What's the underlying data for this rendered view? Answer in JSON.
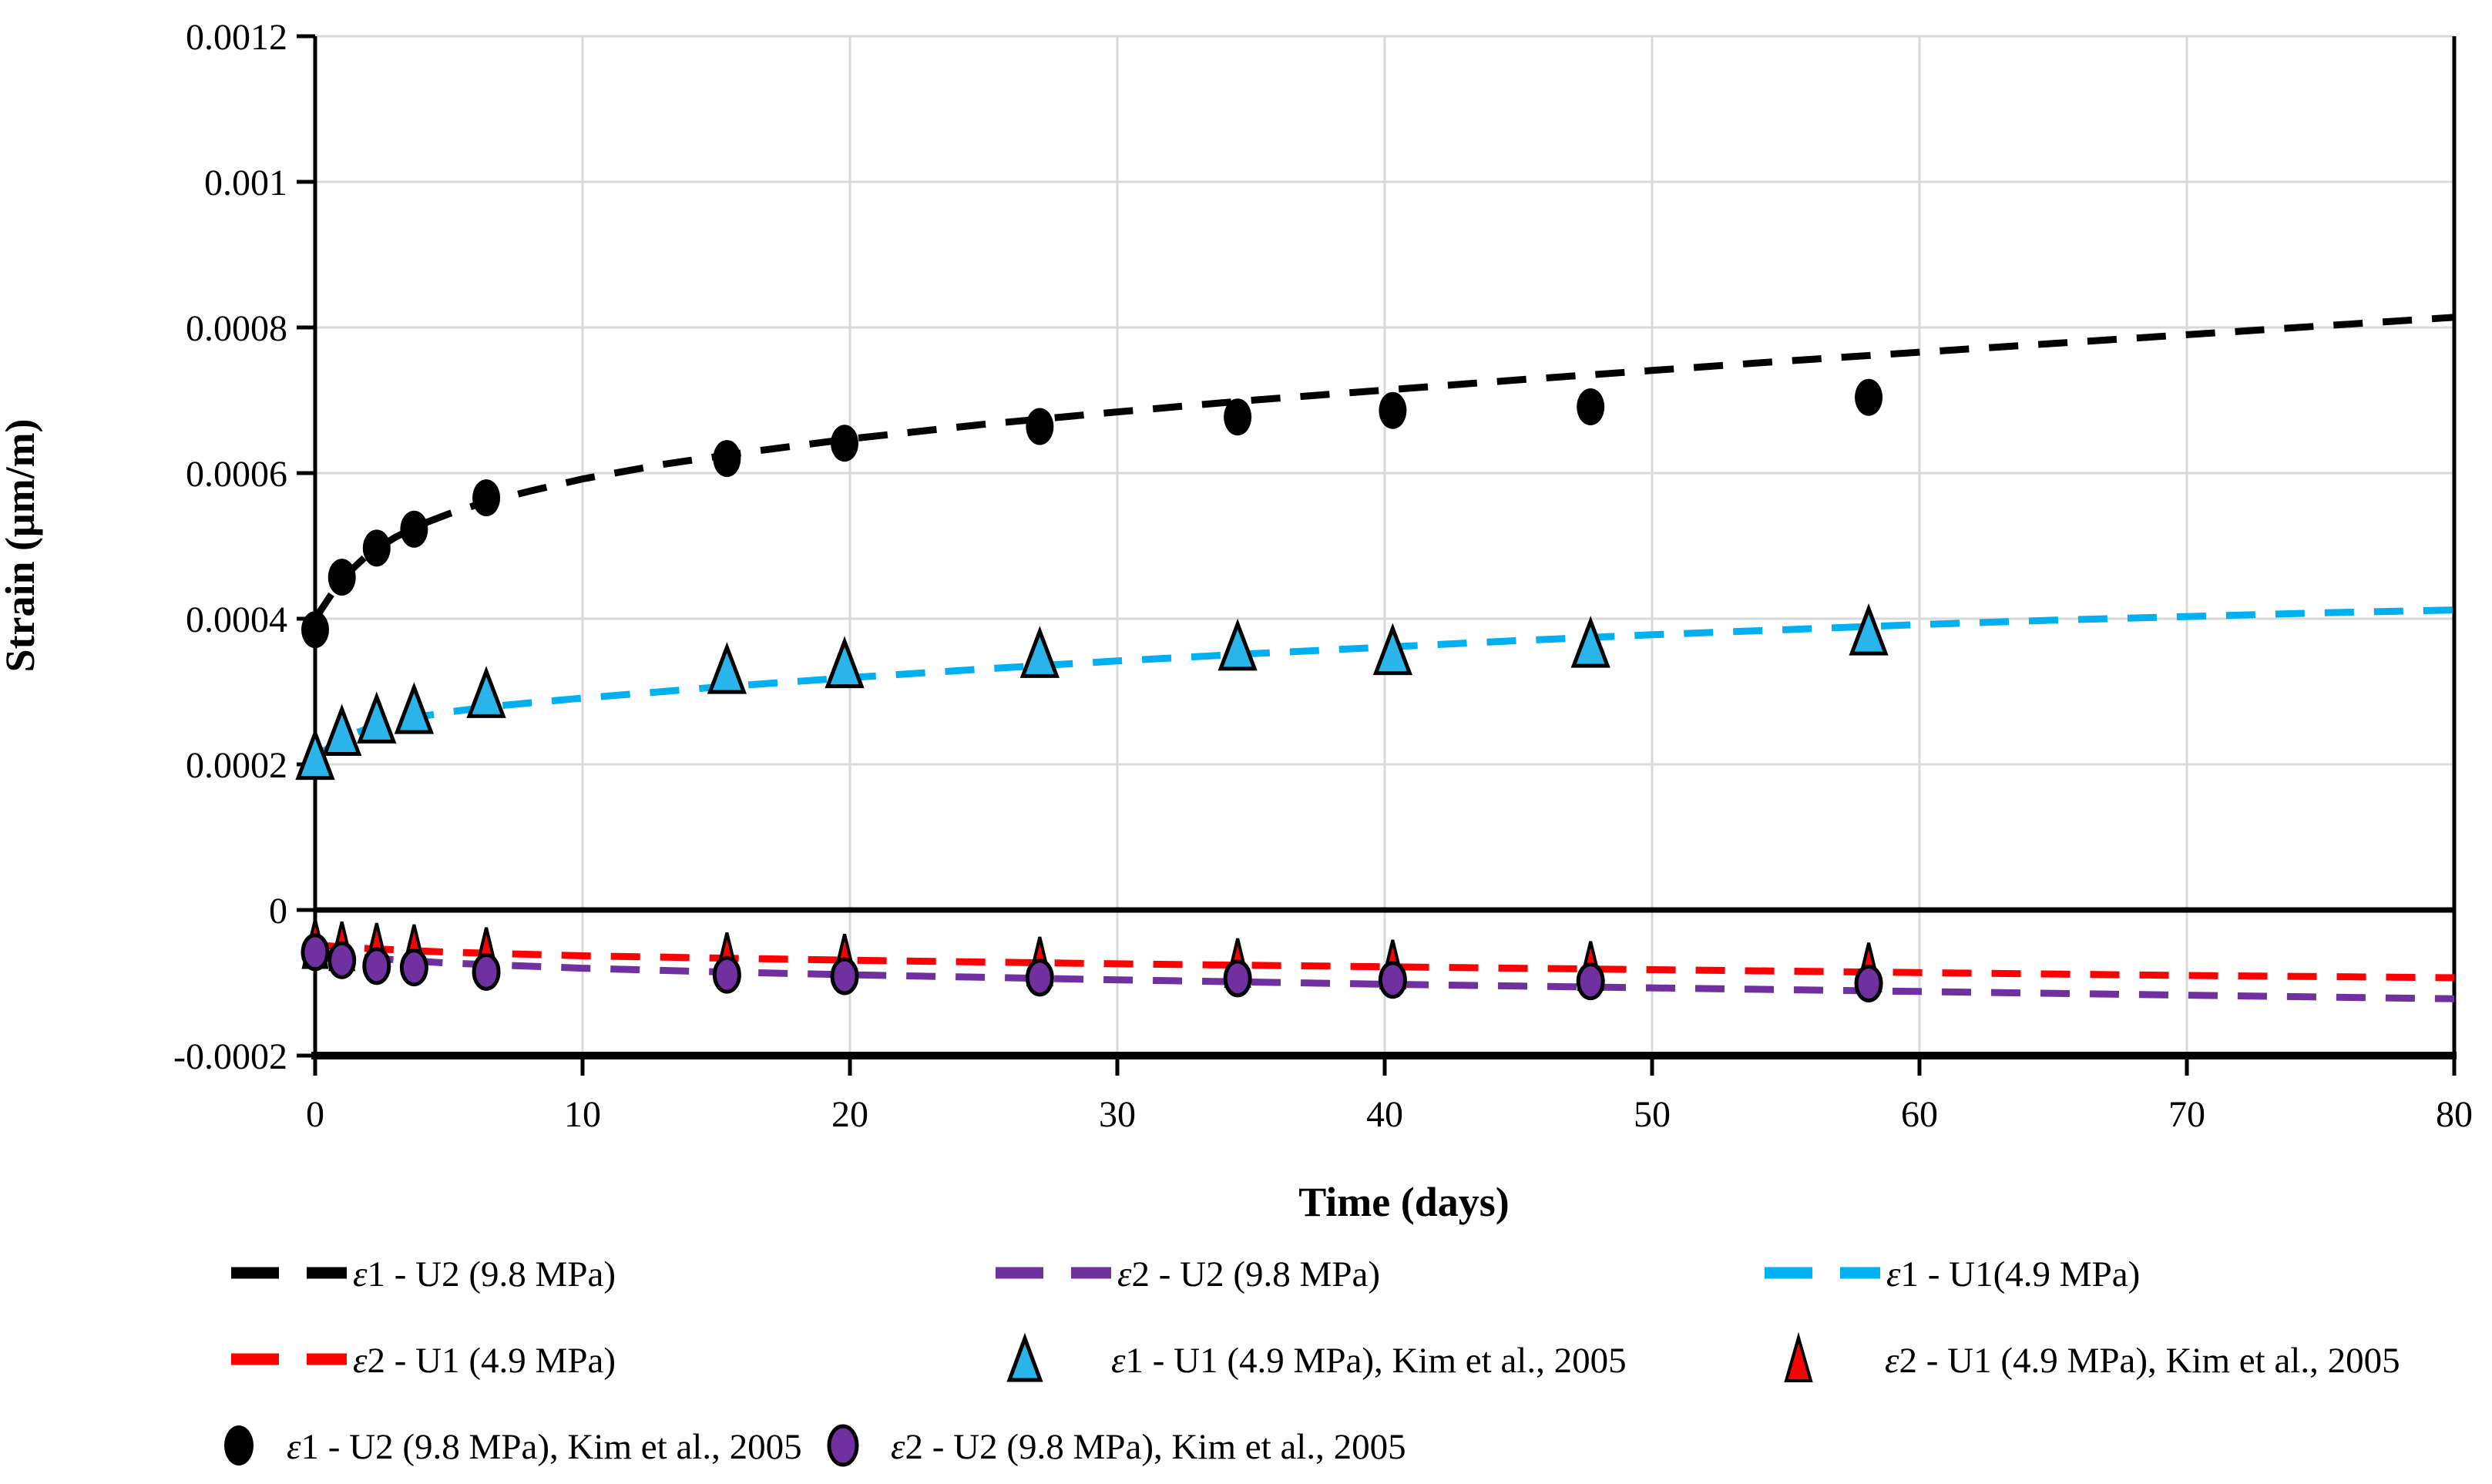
{
  "figure": {
    "background": "#ffffff",
    "grid_color": "#d9d9d9",
    "axis_color": "#000000"
  },
  "chart_data": {
    "type": "scatter",
    "title": "",
    "xlabel": "Time (days)",
    "ylabel": "Strain (μm/m)",
    "xlim": [
      0,
      80
    ],
    "ylim": [
      -0.0002,
      0.0012
    ],
    "x_ticks": [
      0,
      10,
      20,
      30,
      40,
      50,
      60,
      70,
      80
    ],
    "x_tick_labels": [
      "0",
      "10",
      "20",
      "30",
      "40",
      "50",
      "60",
      "70",
      "80"
    ],
    "y_ticks": [
      -0.0002,
      0,
      0.0002,
      0.0004,
      0.0006,
      0.0008,
      0.001,
      0.0012
    ],
    "y_tick_labels": [
      "-0.0002",
      "0",
      "0.0002",
      "0.0004",
      "0.0006",
      "0.0008",
      "0.001",
      "0.0012"
    ],
    "grid": true,
    "legend_position": "below",
    "series": [
      {
        "key": "e1-u2-model",
        "name": "ε1 - U2 (9.8 MPa)",
        "kind": "line",
        "dashed": true,
        "color": "#000000",
        "points": [
          [
            0,
            0.0004
          ],
          [
            1,
            0.000455
          ],
          [
            2,
            0.000489
          ],
          [
            3,
            0.000512
          ],
          [
            4,
            0.00053
          ],
          [
            5,
            0.000544
          ],
          [
            6,
            0.000556
          ],
          [
            8,
            0.000575
          ],
          [
            10,
            0.000592
          ],
          [
            13,
            0.000612
          ],
          [
            16,
            0.000628
          ],
          [
            20,
            0.000647
          ],
          [
            25,
            0.000667
          ],
          [
            30,
            0.000684
          ],
          [
            35,
            0.0007
          ],
          [
            40,
            0.000714
          ],
          [
            45,
            0.000728
          ],
          [
            50,
            0.000741
          ],
          [
            55,
            0.000754
          ],
          [
            60,
            0.000766
          ],
          [
            65,
            0.000778
          ],
          [
            70,
            0.00079
          ],
          [
            75,
            0.000802
          ],
          [
            80,
            0.000814
          ]
        ]
      },
      {
        "key": "e2-u2-model",
        "name": "ε2 - U2 (9.8 MPa)",
        "kind": "line",
        "dashed": true,
        "color": "#7030a0",
        "points": [
          [
            0,
            -5.8e-05
          ],
          [
            2,
            -6.6e-05
          ],
          [
            5,
            -7.3e-05
          ],
          [
            10,
            -8e-05
          ],
          [
            15,
            -8.5e-05
          ],
          [
            20,
            -8.9e-05
          ],
          [
            30,
            -9.6e-05
          ],
          [
            40,
            -0.000102
          ],
          [
            50,
            -0.000107
          ],
          [
            60,
            -0.000112
          ],
          [
            70,
            -0.000117
          ],
          [
            80,
            -0.000122
          ]
        ]
      },
      {
        "key": "e1-u1-model",
        "name": "ε1 - U1(4.9 MPa)",
        "kind": "line",
        "dashed": true,
        "color": "#00b0f0",
        "points": [
          [
            0,
            0.00021
          ],
          [
            1,
            0.000235
          ],
          [
            2,
            0.00025
          ],
          [
            3,
            0.00026
          ],
          [
            5,
            0.000272
          ],
          [
            7,
            0.000281
          ],
          [
            10,
            0.000291
          ],
          [
            15,
            0.000306
          ],
          [
            20,
            0.000319
          ],
          [
            25,
            0.000331
          ],
          [
            30,
            0.000342
          ],
          [
            35,
            0.000352
          ],
          [
            40,
            0.000361
          ],
          [
            45,
            0.00037
          ],
          [
            50,
            0.000378
          ],
          [
            55,
            0.000385
          ],
          [
            60,
            0.000392
          ],
          [
            65,
            0.000398
          ],
          [
            70,
            0.000403
          ],
          [
            75,
            0.000408
          ],
          [
            80,
            0.000412
          ]
        ]
      },
      {
        "key": "e2-u1-model",
        "name": "ε2 - U1 (4.9 MPa)",
        "kind": "line",
        "dashed": true,
        "color": "#ff0000",
        "points": [
          [
            0,
            -4.8e-05
          ],
          [
            2,
            -5.3e-05
          ],
          [
            5,
            -5.8e-05
          ],
          [
            10,
            -6.3e-05
          ],
          [
            15,
            -6.6e-05
          ],
          [
            20,
            -6.9e-05
          ],
          [
            30,
            -7.4e-05
          ],
          [
            40,
            -7.8e-05
          ],
          [
            50,
            -8.2e-05
          ],
          [
            60,
            -8.6e-05
          ],
          [
            70,
            -9e-05
          ],
          [
            80,
            -9.3e-05
          ]
        ]
      },
      {
        "key": "e1-u1-kim2005",
        "name": "ε1 - U1 (4.9 MPa), Kim et al., 2005",
        "kind": "scatter",
        "marker": "triangle",
        "color": "#29b4ea",
        "points": [
          [
            0,
            0.000212
          ],
          [
            1,
            0.000245
          ],
          [
            2.3,
            0.000262
          ],
          [
            3.7,
            0.000275
          ],
          [
            6.4,
            0.000297
          ],
          [
            15.4,
            0.00033
          ],
          [
            19.8,
            0.000338
          ],
          [
            27.1,
            0.000352
          ],
          [
            34.5,
            0.000362
          ],
          [
            40.3,
            0.000356
          ],
          [
            47.7,
            0.000366
          ],
          [
            58.1,
            0.000383
          ]
        ]
      },
      {
        "key": "e2-u1-kim2005",
        "name": "ε2 - U1 (4.9 MPa), Kim et al., 2005",
        "kind": "scatter",
        "marker": "triangle",
        "color": "#ff0000",
        "points": [
          [
            0,
            -4.6e-05
          ],
          [
            1,
            -4.9e-05
          ],
          [
            2.3,
            -5.1e-05
          ],
          [
            3.7,
            -5.3e-05
          ],
          [
            6.4,
            -5.7e-05
          ],
          [
            15.4,
            -6.4e-05
          ],
          [
            19.8,
            -6.6e-05
          ],
          [
            27.1,
            -7e-05
          ],
          [
            34.5,
            -7.2e-05
          ],
          [
            40.3,
            -7.4e-05
          ],
          [
            47.7,
            -7.6e-05
          ],
          [
            58.1,
            -7.8e-05
          ]
        ]
      },
      {
        "key": "e1-u2-kim2005",
        "name": "ε1 - U2 (9.8 MPa), Kim et al., 2005",
        "kind": "scatter",
        "marker": "circle",
        "color": "#000000",
        "points": [
          [
            0,
            0.000385
          ],
          [
            1,
            0.000457
          ],
          [
            2.3,
            0.000497
          ],
          [
            3.7,
            0.000523
          ],
          [
            6.4,
            0.000566
          ],
          [
            15.4,
            0.00062
          ],
          [
            19.8,
            0.000641
          ],
          [
            27.1,
            0.000664
          ],
          [
            34.5,
            0.000677
          ],
          [
            40.3,
            0.000686
          ],
          [
            47.7,
            0.000691
          ],
          [
            58.1,
            0.000704
          ]
        ]
      },
      {
        "key": "e2-u2-kim2005",
        "name": "ε2 - U2 (9.8 MPa), Kim et al., 2005",
        "kind": "scatter",
        "marker": "circle",
        "color": "#7030a0",
        "points": [
          [
            0,
            -5.8e-05
          ],
          [
            1,
            -6.9e-05
          ],
          [
            2.3,
            -7.7e-05
          ],
          [
            3.7,
            -7.9e-05
          ],
          [
            6.4,
            -8.5e-05
          ],
          [
            15.4,
            -8.9e-05
          ],
          [
            19.8,
            -9.1e-05
          ],
          [
            27.1,
            -9.3e-05
          ],
          [
            34.5,
            -9.4e-05
          ],
          [
            40.3,
            -9.6e-05
          ],
          [
            47.7,
            -9.8e-05
          ],
          [
            58.1,
            -0.000101
          ]
        ]
      }
    ]
  }
}
